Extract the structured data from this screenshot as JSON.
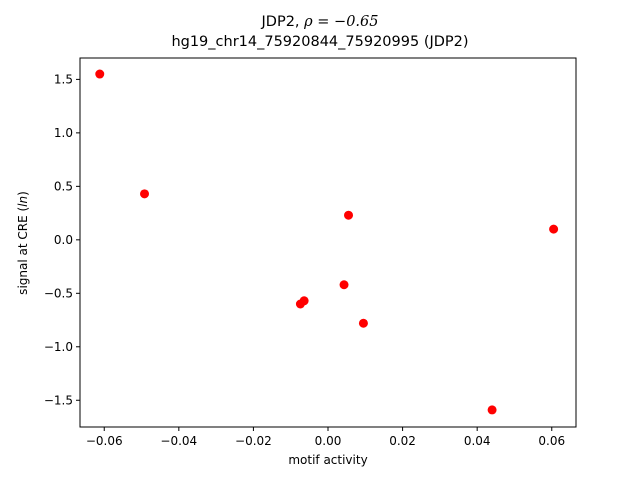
{
  "chart_data": {
    "type": "scatter",
    "title_prefix": "JDP2, ",
    "title_rho": "ρ = −0.65",
    "subtitle": "hg19_chr14_75920844_75920995 (JDP2)",
    "xlabel": "motif activity",
    "ylabel_prefix": "signal at CRE (",
    "ylabel_unit": "ln",
    "ylabel_suffix": ")",
    "xlim": [
      -0.0665,
      0.0665
    ],
    "ylim": [
      -1.75,
      1.7
    ],
    "xticks": [
      -0.06,
      -0.04,
      -0.02,
      0.0,
      0.02,
      0.04,
      0.06
    ],
    "xtick_labels": [
      "−0.06",
      "−0.04",
      "−0.02",
      "0.00",
      "0.02",
      "0.04",
      "0.06"
    ],
    "yticks": [
      -1.5,
      -1.0,
      -0.5,
      0.0,
      0.5,
      1.0,
      1.5
    ],
    "ytick_labels": [
      "−1.5",
      "−1.0",
      "−0.5",
      "0.0",
      "0.5",
      "1.0",
      "1.5"
    ],
    "grid": false,
    "marker_color": "#ff0000",
    "points": [
      {
        "x": -0.0612,
        "y": 1.55
      },
      {
        "x": -0.0492,
        "y": 0.43
      },
      {
        "x": 0.0055,
        "y": 0.23
      },
      {
        "x": 0.0605,
        "y": 0.1
      },
      {
        "x": 0.0043,
        "y": -0.42
      },
      {
        "x": -0.0064,
        "y": -0.57
      },
      {
        "x": -0.0074,
        "y": -0.6
      },
      {
        "x": 0.0095,
        "y": -0.78
      },
      {
        "x": 0.044,
        "y": -1.59
      }
    ]
  }
}
